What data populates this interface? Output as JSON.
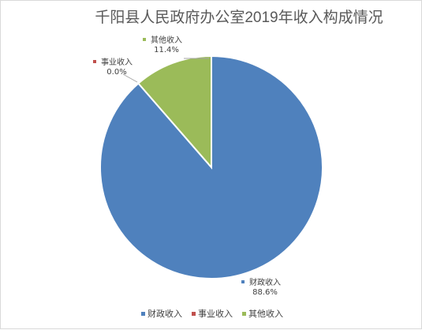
{
  "chart_data": {
    "type": "pie",
    "title": "千阳县人民政府办公室2019年收入构成情况",
    "categories": [
      "财政收入",
      "事业收入",
      "其他收入"
    ],
    "values": [
      88.6,
      0.0,
      11.4
    ],
    "value_labels": [
      "88.6%",
      "0.0%",
      "11.4%"
    ],
    "colors": [
      "#4f81bd",
      "#c0504d",
      "#9bbb59"
    ],
    "legend_position": "bottom"
  }
}
